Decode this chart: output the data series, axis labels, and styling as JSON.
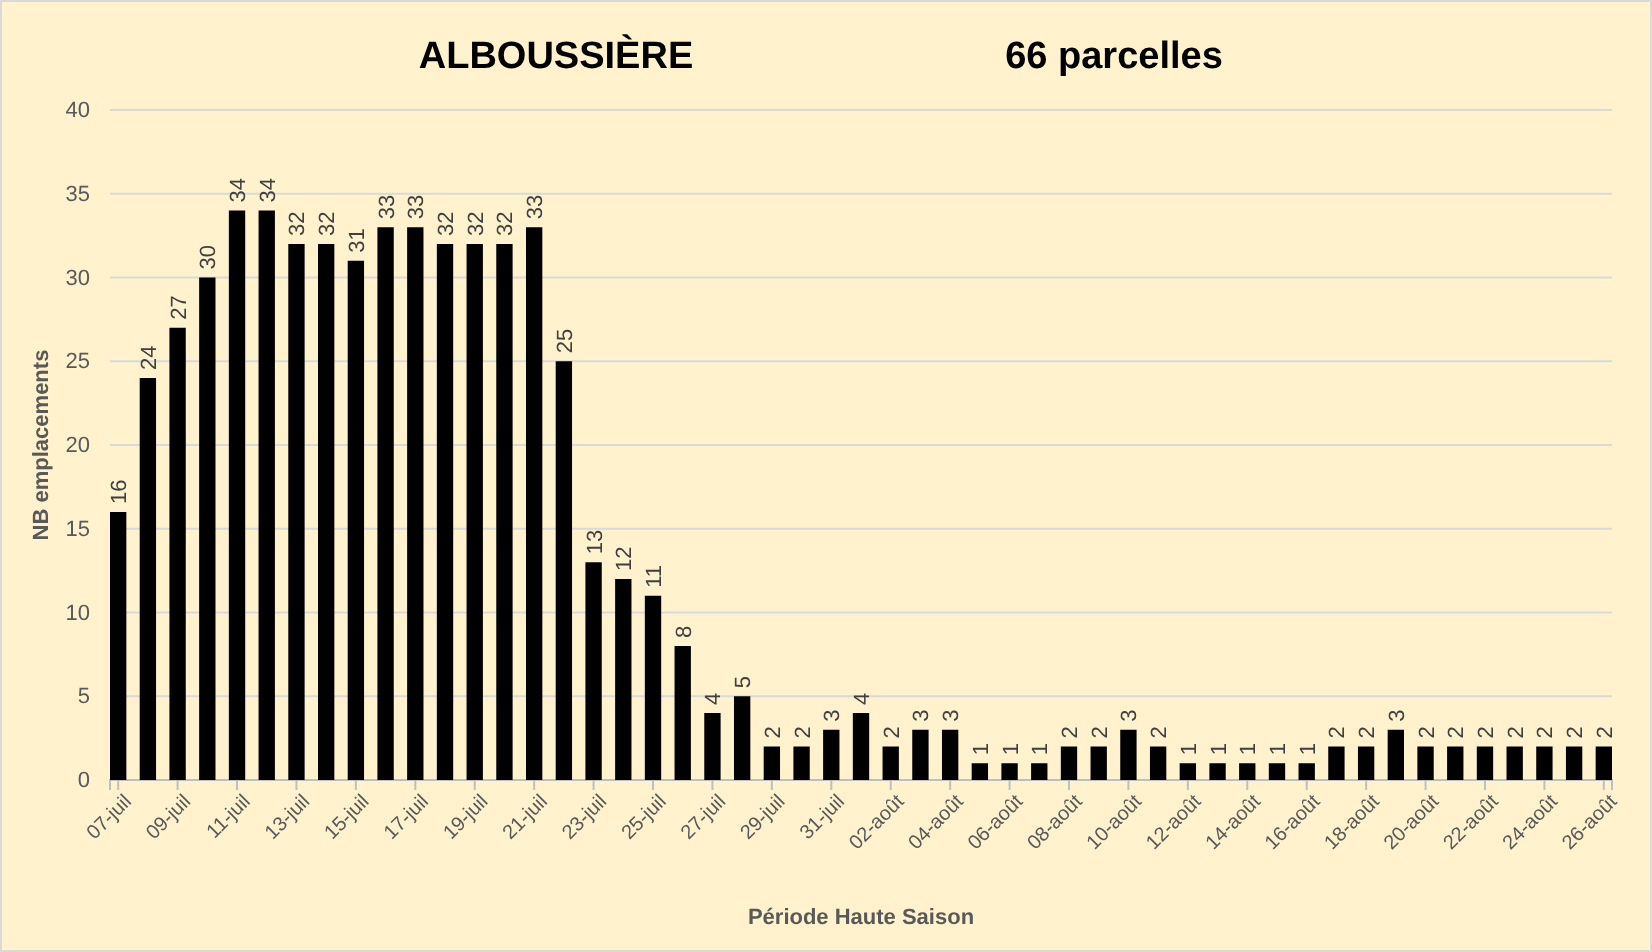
{
  "chart_data": {
    "type": "bar",
    "title": "ALBOUSSIÈRE",
    "subtitle": "66 parcelles",
    "xlabel": "Période Haute Saison",
    "ylabel": "NB emplacements",
    "categories": [
      "07-juil",
      null,
      "09-juil",
      null,
      "11-juil",
      null,
      "13-juil",
      null,
      "15-juil",
      null,
      "17-juil",
      null,
      "19-juil",
      null,
      "21-juil",
      null,
      "23-juil",
      null,
      "25-juil",
      null,
      "27-juil",
      null,
      "29-juil",
      null,
      "31-juil",
      null,
      "02-août",
      null,
      "04-août",
      null,
      "06-août",
      null,
      "08-août",
      null,
      "10-août",
      null,
      "12-août",
      null,
      "14-août",
      null,
      "16-août",
      null,
      "18-août",
      null,
      "20-août",
      null,
      "22-août",
      null,
      "24-août",
      null,
      "26-août"
    ],
    "values": [
      16,
      24,
      27,
      30,
      34,
      34,
      32,
      32,
      31,
      33,
      33,
      32,
      32,
      32,
      33,
      25,
      13,
      12,
      11,
      8,
      4,
      5,
      2,
      2,
      3,
      4,
      2,
      3,
      3,
      1,
      1,
      1,
      2,
      2,
      3,
      2,
      1,
      1,
      1,
      1,
      1,
      2,
      2,
      3,
      2,
      2,
      2,
      2,
      2,
      2,
      2
    ],
    "color": "#000000",
    "ylim": [
      0,
      40
    ],
    "yticks": [
      0,
      5,
      10,
      15,
      20,
      25,
      30,
      35,
      40
    ],
    "grid": "y",
    "data_labels": true
  }
}
